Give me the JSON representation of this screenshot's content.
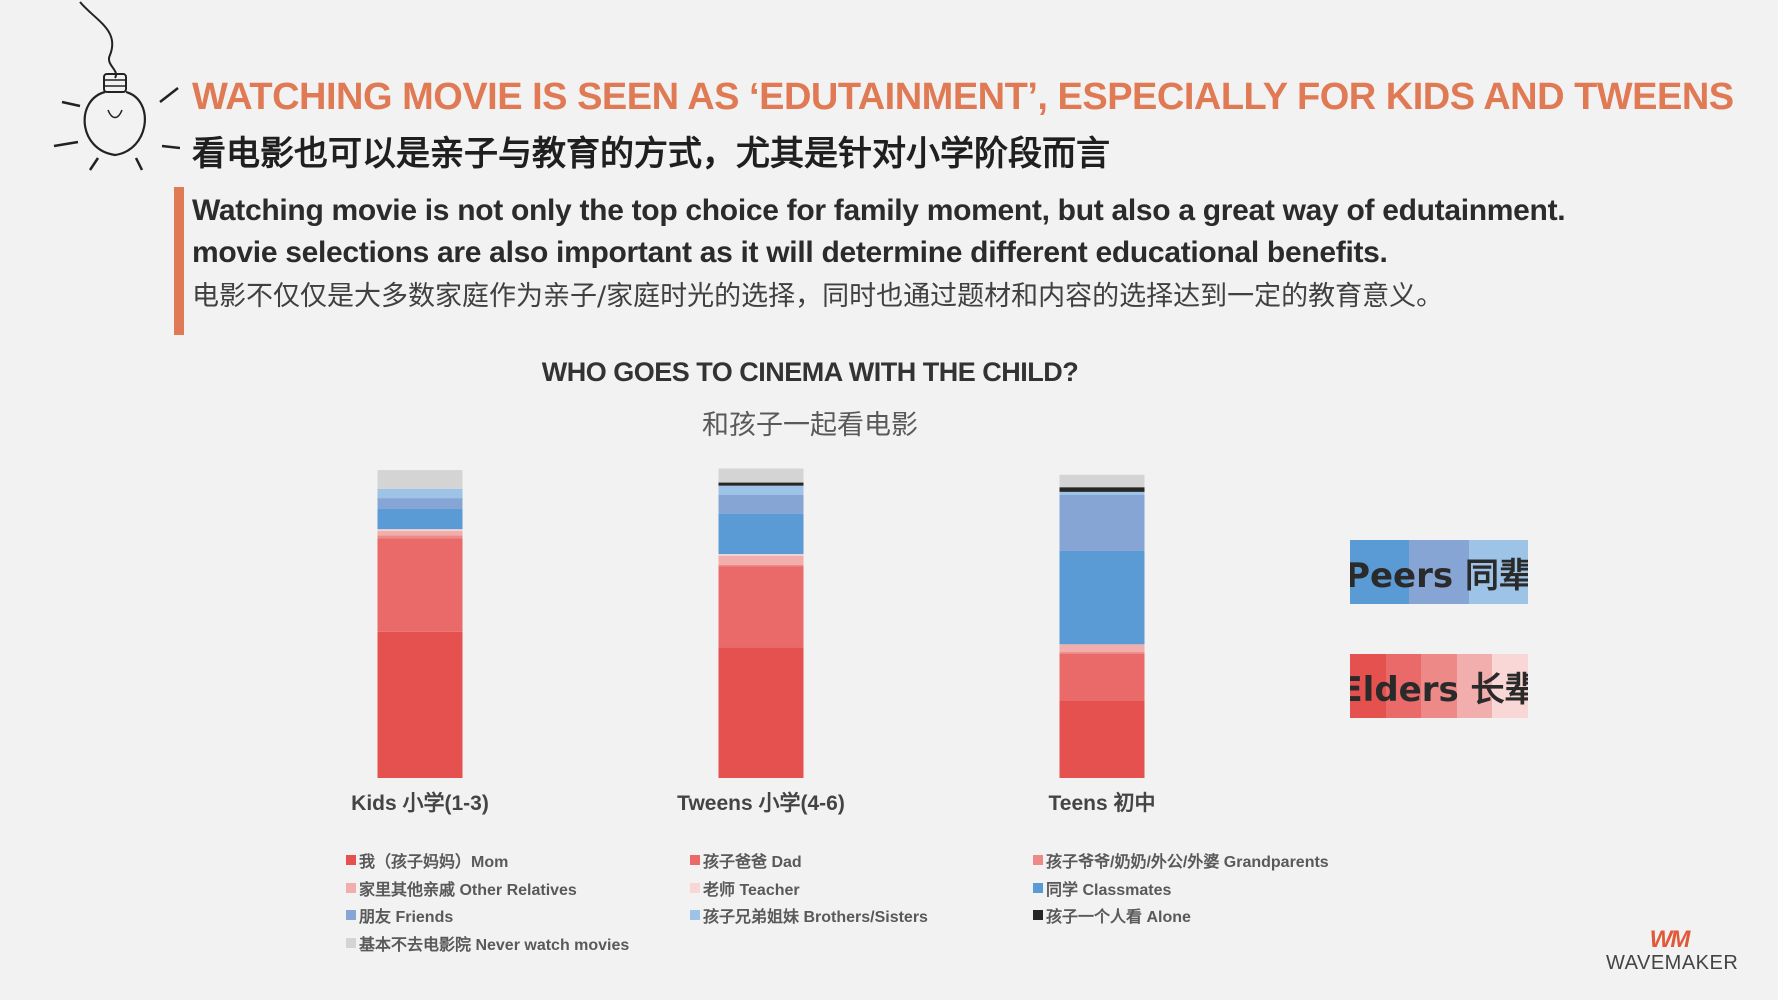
{
  "title_en": "WATCHING MOVIE IS SEEN AS ‘EDUTAINMENT’, ESPECIALLY FOR KIDS AND TWEENS",
  "title_cn": "看电影也可以是亲子与教育的方式，尤其是针对小学阶段而言",
  "subtitle_en_line1": "Watching movie is not only the top choice for family moment, but also a great way of edutainment.",
  "subtitle_en_line2": "movie selections are also important as it will determine different educational benefits.",
  "subtitle_cn": "电影不仅仅是大多数家庭作为亲子/家庭时光的选择，同时也通过题材和内容的选择达到一定的教育意义。",
  "groups": {
    "peers_label": "Peers 同辈",
    "elders_label": "Elders 长辈",
    "peers_colors": [
      "#5b9bd5",
      "#86a5d4",
      "#9dc3e6"
    ],
    "elders_colors": [
      "#e4514f",
      "#e96a68",
      "#ed8a88",
      "#f2aeac",
      "#f8d7d6"
    ]
  },
  "logo": {
    "mark": "WM",
    "text": "WAVEMAKER"
  },
  "chart_data": {
    "type": "bar",
    "stacked": true,
    "title": "WHO GOES TO CINEMA WITH THE CHILD?",
    "subtitle": "和孩子一起看电影",
    "categories": [
      "Kids 小学(1-3)",
      "Tweens 小学(4-6)",
      "Teens 初中"
    ],
    "ylim": [
      0,
      100
    ],
    "ylabel": "",
    "xlabel": "",
    "legend_position": "bottom",
    "series": [
      {
        "name": "我（孩子妈妈）Mom",
        "color": "#e4514f",
        "values": [
          47,
          42,
          25
        ]
      },
      {
        "name": "孩子爸爸 Dad",
        "color": "#e96a68",
        "values": [
          30,
          26,
          15
        ]
      },
      {
        "name": "孩子爷爷/奶奶/外公/外婆 Grandparents",
        "color": "#ed8a88",
        "values": [
          1,
          0.5,
          0.5
        ]
      },
      {
        "name": "家里其他亲戚 Other Relatives",
        "color": "#f2aeac",
        "values": [
          1.5,
          3,
          2.5
        ]
      },
      {
        "name": "老师 Teacher",
        "color": "#f8d7d6",
        "values": [
          0.5,
          0.5,
          0
        ]
      },
      {
        "name": "同学 Classmates",
        "color": "#5b9bd5",
        "values": [
          6.5,
          13,
          30
        ]
      },
      {
        "name": "朋友 Friends",
        "color": "#86a5d4",
        "values": [
          3.5,
          6,
          18
        ]
      },
      {
        "name": "孩子兄弟姐妹 Brothers/Sisters",
        "color": "#9dc3e6",
        "values": [
          3,
          3,
          1
        ]
      },
      {
        "name": "孩子一个人看 Alone",
        "color": "#262626",
        "values": [
          0,
          1,
          1.5
        ]
      },
      {
        "name": "基本不去电影院 Never watch movies",
        "color": "#d4d4d4",
        "values": [
          6,
          4.5,
          4
        ]
      }
    ]
  }
}
